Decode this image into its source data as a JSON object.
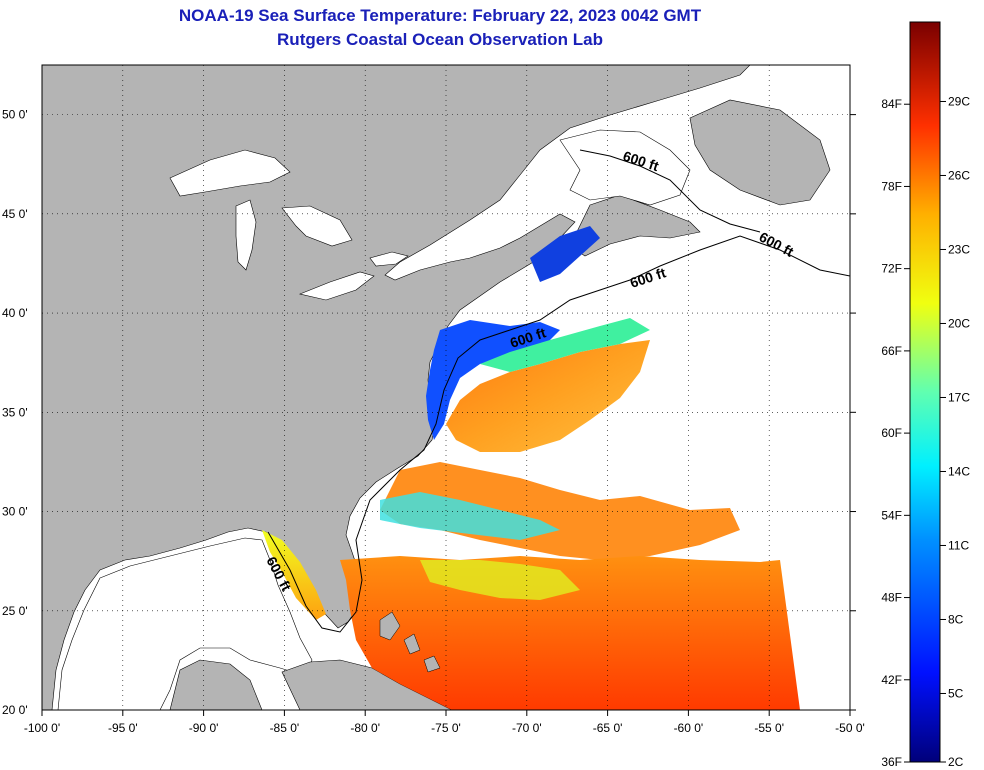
{
  "title": {
    "line1": "NOAA-19 Sea Surface Temperature:  February 22, 2023 0042 GMT",
    "line2": "Rutgers Coastal Ocean Observation Lab"
  },
  "map": {
    "lon_range": [
      -100,
      -50
    ],
    "lat_range": [
      20,
      52.5
    ],
    "lon_ticks": [
      -100,
      -95,
      -90,
      -85,
      -80,
      -75,
      -70,
      -65,
      -60,
      -55,
      -50
    ],
    "lon_labels": [
      "-100 0'",
      "-95 0'",
      "-90 0'",
      "-85 0'",
      "-80 0'",
      "-75 0'",
      "-70 0'",
      "-65 0'",
      "-60 0'",
      "-55 0'",
      "-50 0'"
    ],
    "lat_ticks": [
      20,
      25,
      30,
      35,
      40,
      45,
      50
    ],
    "lat_labels": [
      "20 0'",
      "25 0'",
      "30 0'",
      "35 0'",
      "40 0'",
      "45 0'",
      "50 0'"
    ],
    "land_color": "#b4b4b4",
    "contour_label": "600 ft"
  },
  "colorbar": {
    "f_labels": [
      "84F",
      "78F",
      "72F",
      "66F",
      "60F",
      "54F",
      "48F",
      "42F",
      "36F"
    ],
    "c_labels": [
      "29C",
      "26C",
      "23C",
      "20C",
      "17C",
      "14C",
      "11C",
      "8C",
      "5C",
      "2C"
    ],
    "f_values": [
      84,
      78,
      72,
      66,
      60,
      54,
      48,
      42,
      36
    ],
    "c_values": [
      29,
      26,
      23,
      20,
      17,
      14,
      11,
      8,
      5,
      2
    ]
  }
}
